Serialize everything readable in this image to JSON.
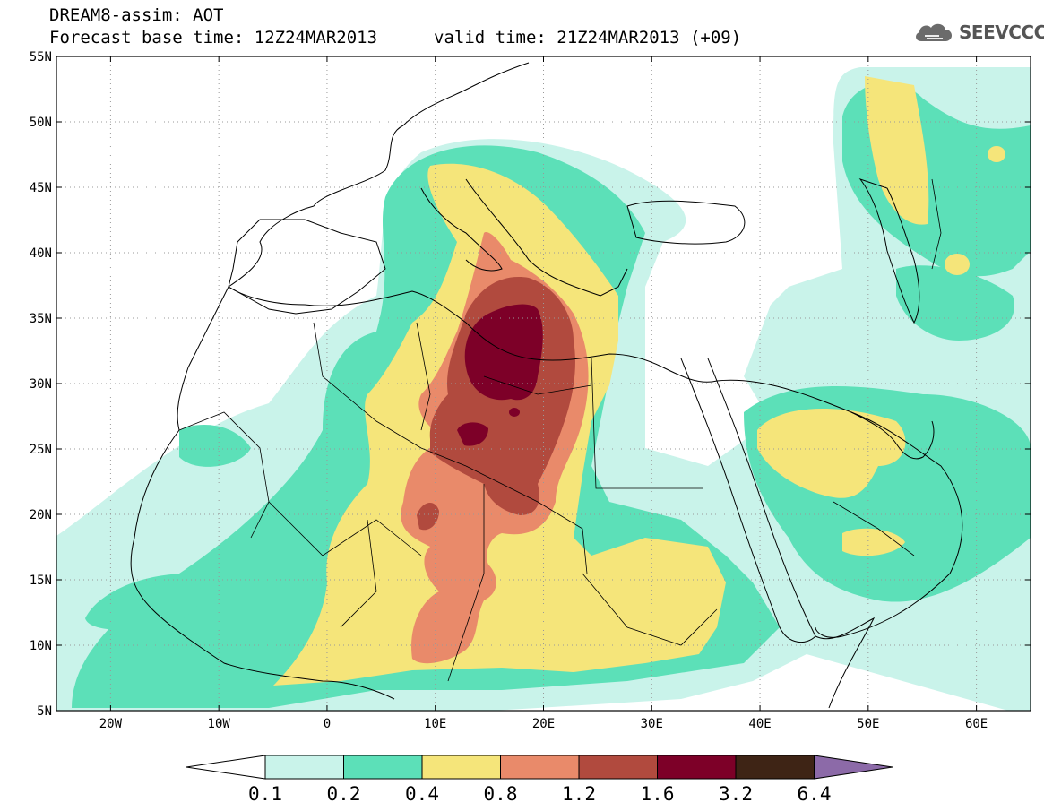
{
  "header": {
    "title": "DREAM8-assim: AOT",
    "base_time": "Forecast base time: 12Z24MAR2013",
    "valid_time": "valid time: 21Z24MAR2013 (+09)"
  },
  "logo": {
    "text": "SEEVCCC",
    "icon": "cloud-icon"
  },
  "axes": {
    "lat_labels": [
      "55N",
      "50N",
      "45N",
      "40N",
      "35N",
      "30N",
      "25N",
      "20N",
      "15N",
      "10N",
      "5N"
    ],
    "lon_labels": [
      "20W",
      "10W",
      "0",
      "10E",
      "20E",
      "30E",
      "40E",
      "50E",
      "60E"
    ],
    "lat_range": [
      5,
      55
    ],
    "lon_range": [
      -25,
      65
    ],
    "grid": "dotted"
  },
  "colorbar": {
    "labels": [
      "0.1",
      "0.2",
      "0.4",
      "0.8",
      "1.2",
      "1.6",
      "3.2",
      "6.4"
    ],
    "colors": [
      "#ffffff",
      "#c9f3ea",
      "#5ce0b8",
      "#f5e57a",
      "#e98a6a",
      "#b14a3e",
      "#7d0028",
      "#3e2415",
      "#8c6aa8"
    ]
  }
}
